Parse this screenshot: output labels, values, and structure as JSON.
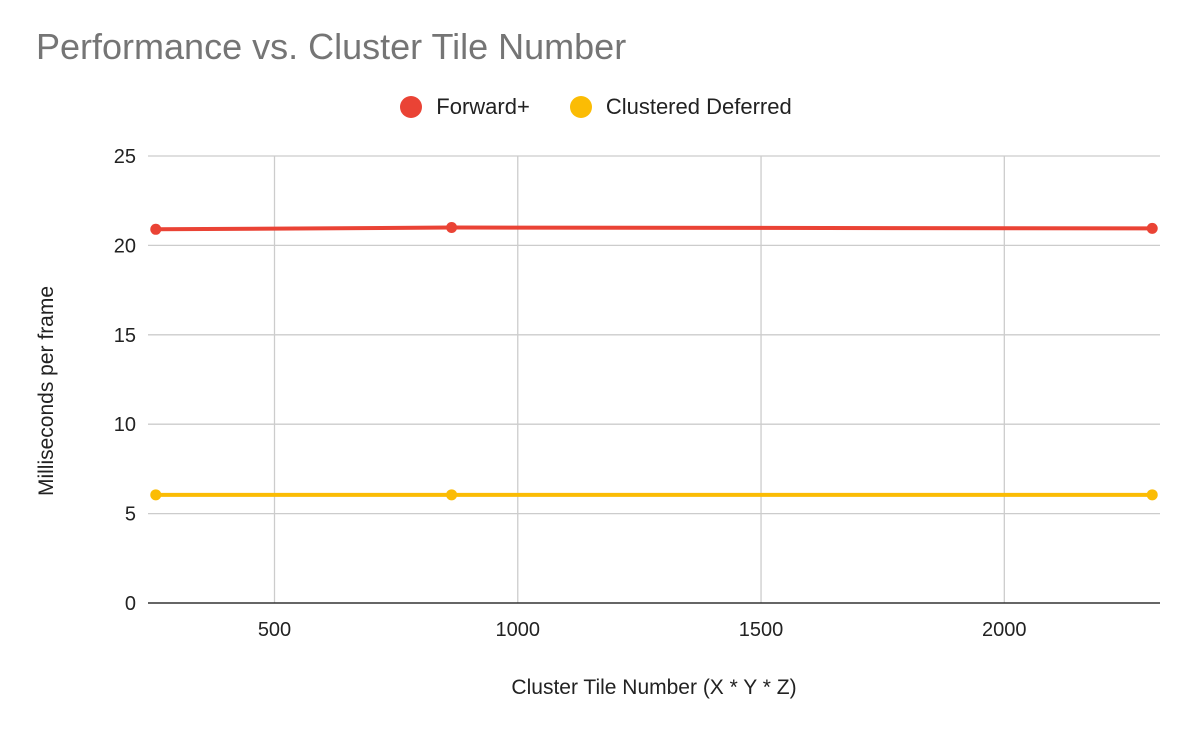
{
  "chart_data": {
    "type": "line",
    "title": "Performance vs. Cluster Tile Number",
    "xlabel": "Cluster Tile Number (X * Y * Z)",
    "ylabel": "Milliseconds per frame",
    "xlim": [
      240,
      2320
    ],
    "ylim": [
      0,
      25
    ],
    "x_ticks": [
      500,
      1000,
      1500,
      2000
    ],
    "x_tick_labels": [
      "500",
      "1000",
      "1500",
      "2000"
    ],
    "y_ticks": [
      0,
      5,
      10,
      15,
      20,
      25
    ],
    "y_tick_labels": [
      "0",
      "5",
      "10",
      "15",
      "20",
      "25"
    ],
    "grid": true,
    "legend_position": "top-center",
    "series": [
      {
        "name": "Forward+",
        "color": "#ea4335",
        "x": [
          256,
          864,
          2304
        ],
        "y": [
          20.9,
          21.0,
          20.95
        ]
      },
      {
        "name": "Clustered Deferred",
        "color": "#fbbc04",
        "x": [
          256,
          864,
          2304
        ],
        "y": [
          6.05,
          6.05,
          6.05
        ]
      }
    ]
  }
}
